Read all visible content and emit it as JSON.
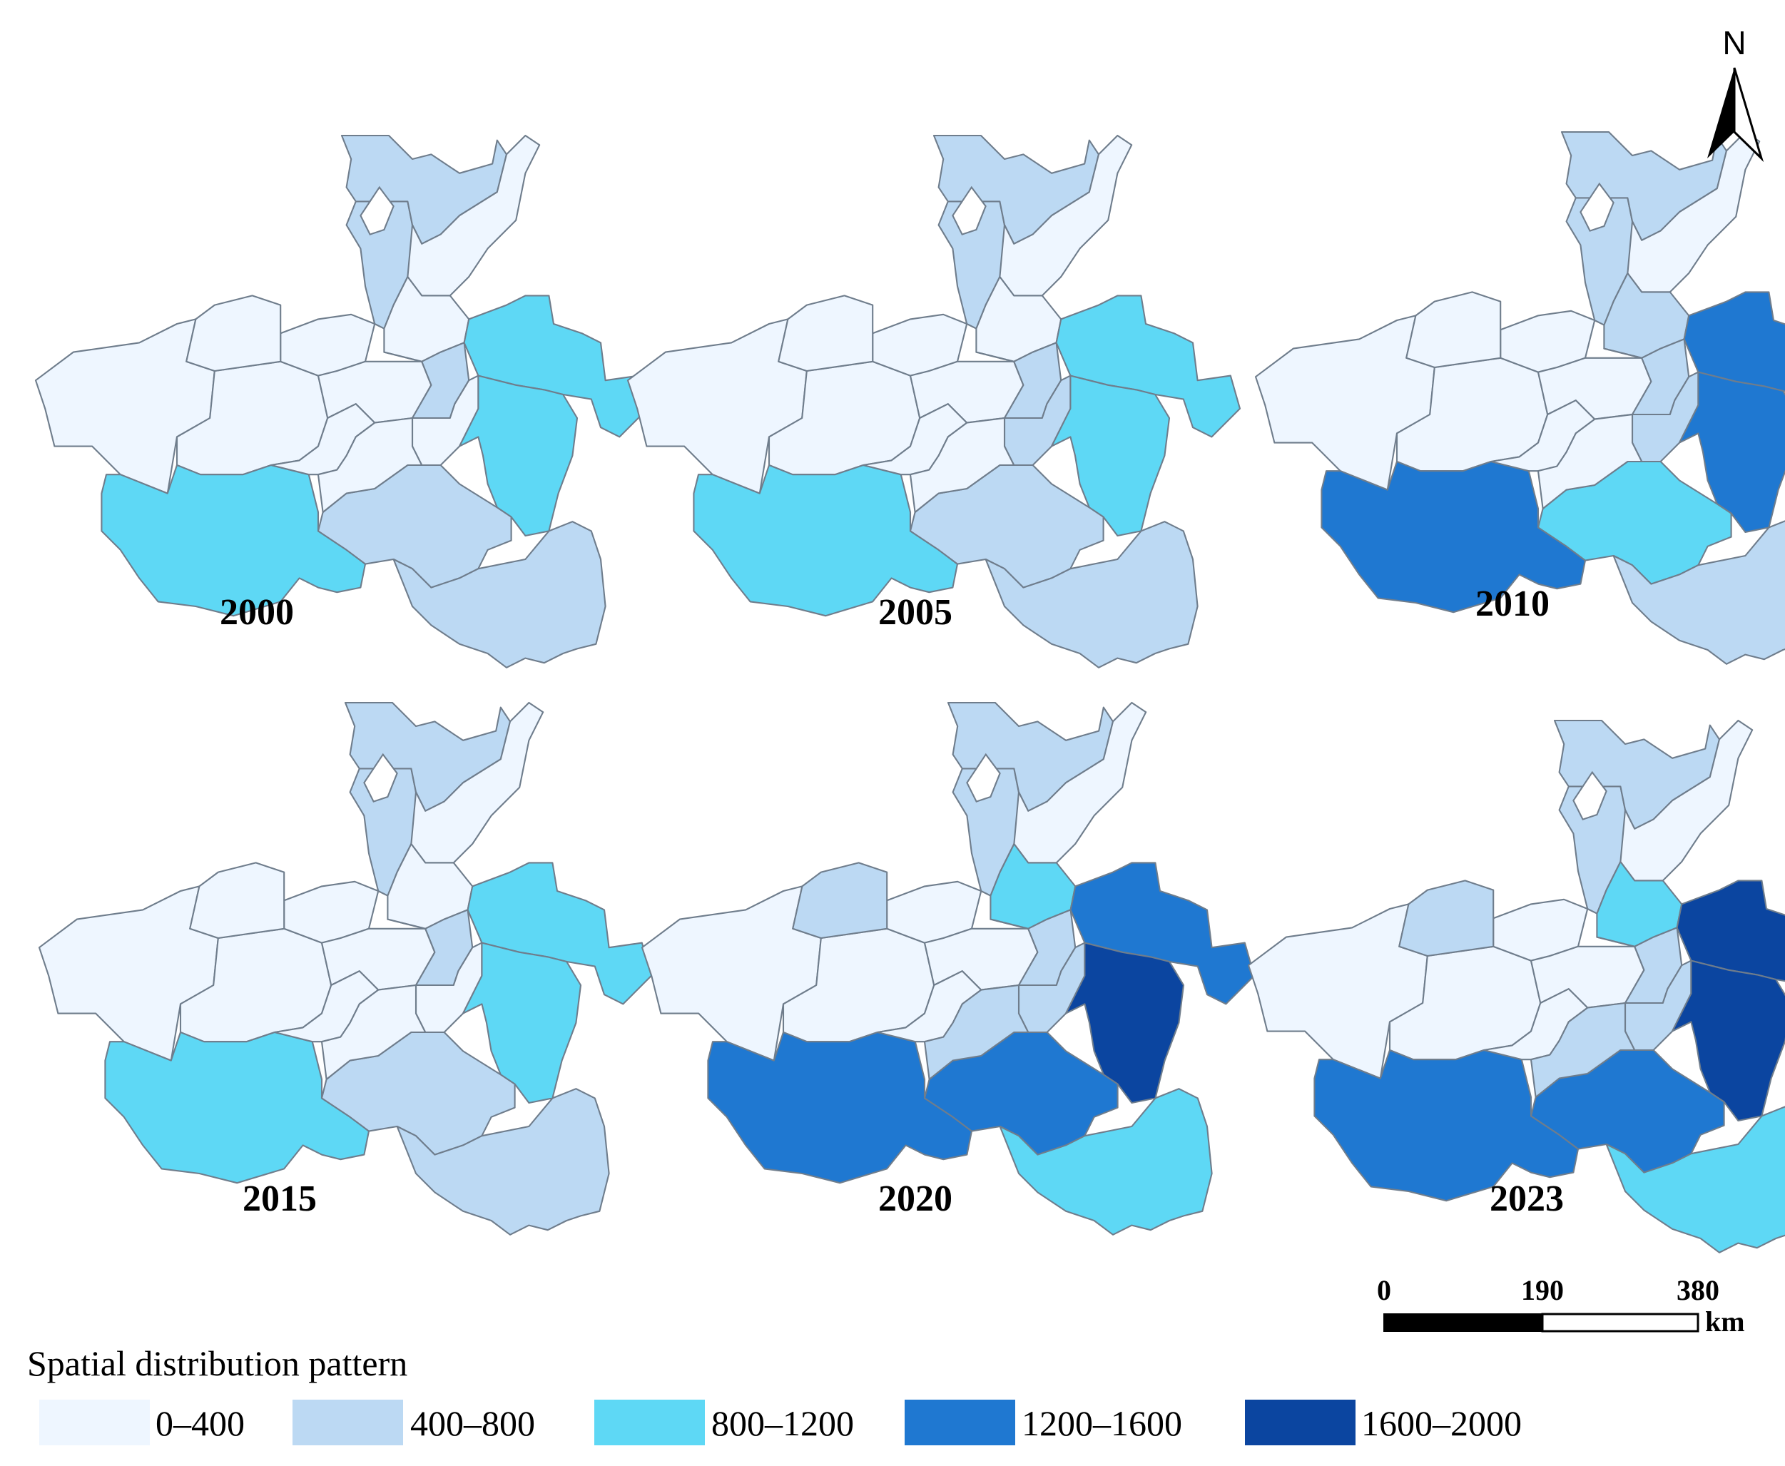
{
  "legend": {
    "title": "Spatial distribution pattern",
    "classes": [
      {
        "label": "0–400",
        "color": "#eef6ff"
      },
      {
        "label": "400–800",
        "color": "#bcd9f3"
      },
      {
        "label": "800–1200",
        "color": "#5ed8f5"
      },
      {
        "label": "1200–1600",
        "color": "#1f78d1"
      },
      {
        "label": "1600–2000",
        "color": "#0b45a0"
      }
    ]
  },
  "north_arrow": {
    "label": "N"
  },
  "scale_bar": {
    "ticks": [
      "0",
      "190",
      "380"
    ],
    "unit": "km"
  },
  "maps": [
    {
      "year": "2000",
      "classes": [
        0,
        0,
        0,
        0,
        0,
        1,
        1,
        0,
        0,
        1,
        2,
        0,
        2,
        2,
        1,
        1,
        0,
        0
      ]
    },
    {
      "year": "2005",
      "classes": [
        0,
        0,
        0,
        0,
        0,
        1,
        1,
        0,
        0,
        1,
        2,
        1,
        2,
        2,
        1,
        1,
        0,
        0
      ]
    },
    {
      "year": "2010",
      "classes": [
        0,
        0,
        0,
        0,
        0,
        1,
        1,
        0,
        1,
        1,
        3,
        1,
        3,
        3,
        2,
        1,
        0,
        0
      ]
    },
    {
      "year": "2015",
      "classes": [
        0,
        0,
        0,
        0,
        0,
        1,
        1,
        0,
        0,
        1,
        2,
        0,
        2,
        2,
        1,
        1,
        0,
        0
      ]
    },
    {
      "year": "2020",
      "classes": [
        0,
        0,
        0,
        1,
        0,
        1,
        1,
        0,
        2,
        1,
        3,
        1,
        4,
        3,
        3,
        2,
        0,
        1
      ]
    },
    {
      "year": "2023",
      "classes": [
        0,
        0,
        0,
        1,
        0,
        1,
        1,
        0,
        2,
        1,
        4,
        1,
        4,
        3,
        3,
        2,
        0,
        1
      ]
    }
  ]
}
